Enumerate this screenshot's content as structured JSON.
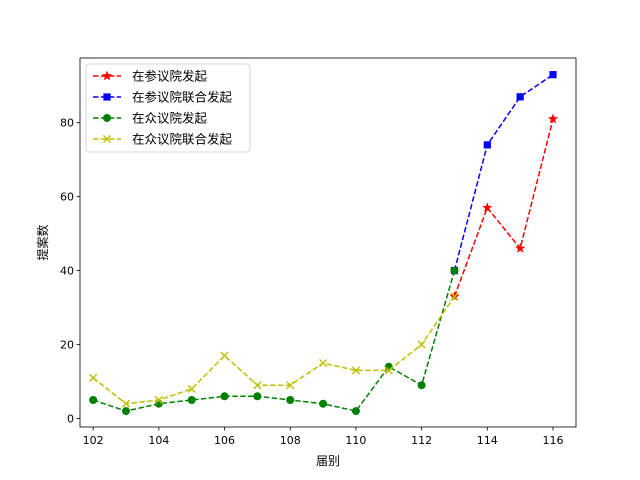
{
  "chart_data": {
    "type": "line",
    "title": "",
    "xlabel": "届别",
    "ylabel": "提案数",
    "xlim": [
      101.6,
      116.7
    ],
    "ylim": [
      -2.3,
      97.5
    ],
    "xticks": [
      102,
      104,
      106,
      108,
      110,
      112,
      114,
      116
    ],
    "yticks": [
      0,
      20,
      40,
      60,
      80
    ],
    "grid": false,
    "legend_position": "top-left",
    "series": [
      {
        "name": "在参议院发起",
        "color": "#ff0000",
        "marker": "star",
        "linestyle": "dashed",
        "x": [
          113,
          114,
          115,
          116
        ],
        "y": [
          33,
          57,
          46,
          81
        ]
      },
      {
        "name": "在参议院联合发起",
        "color": "#0000ff",
        "marker": "square",
        "linestyle": "dashed",
        "x": [
          113,
          114,
          115,
          116
        ],
        "y": [
          40,
          74,
          87,
          93
        ]
      },
      {
        "name": "在众议院发起",
        "color": "#008000",
        "marker": "circle",
        "linestyle": "dashed",
        "x": [
          102,
          103,
          104,
          105,
          106,
          107,
          108,
          109,
          110,
          111,
          112,
          113
        ],
        "y": [
          5,
          2,
          4,
          5,
          6,
          6,
          5,
          4,
          2,
          14,
          9,
          40
        ]
      },
      {
        "name": "在众议院联合发起",
        "color": "#bfbf00",
        "marker": "x",
        "linestyle": "dashed",
        "x": [
          102,
          103,
          104,
          105,
          106,
          107,
          108,
          109,
          110,
          111,
          112,
          113
        ],
        "y": [
          11,
          4,
          5,
          8,
          17,
          9,
          9,
          15,
          13,
          13,
          20,
          33
        ]
      }
    ]
  }
}
